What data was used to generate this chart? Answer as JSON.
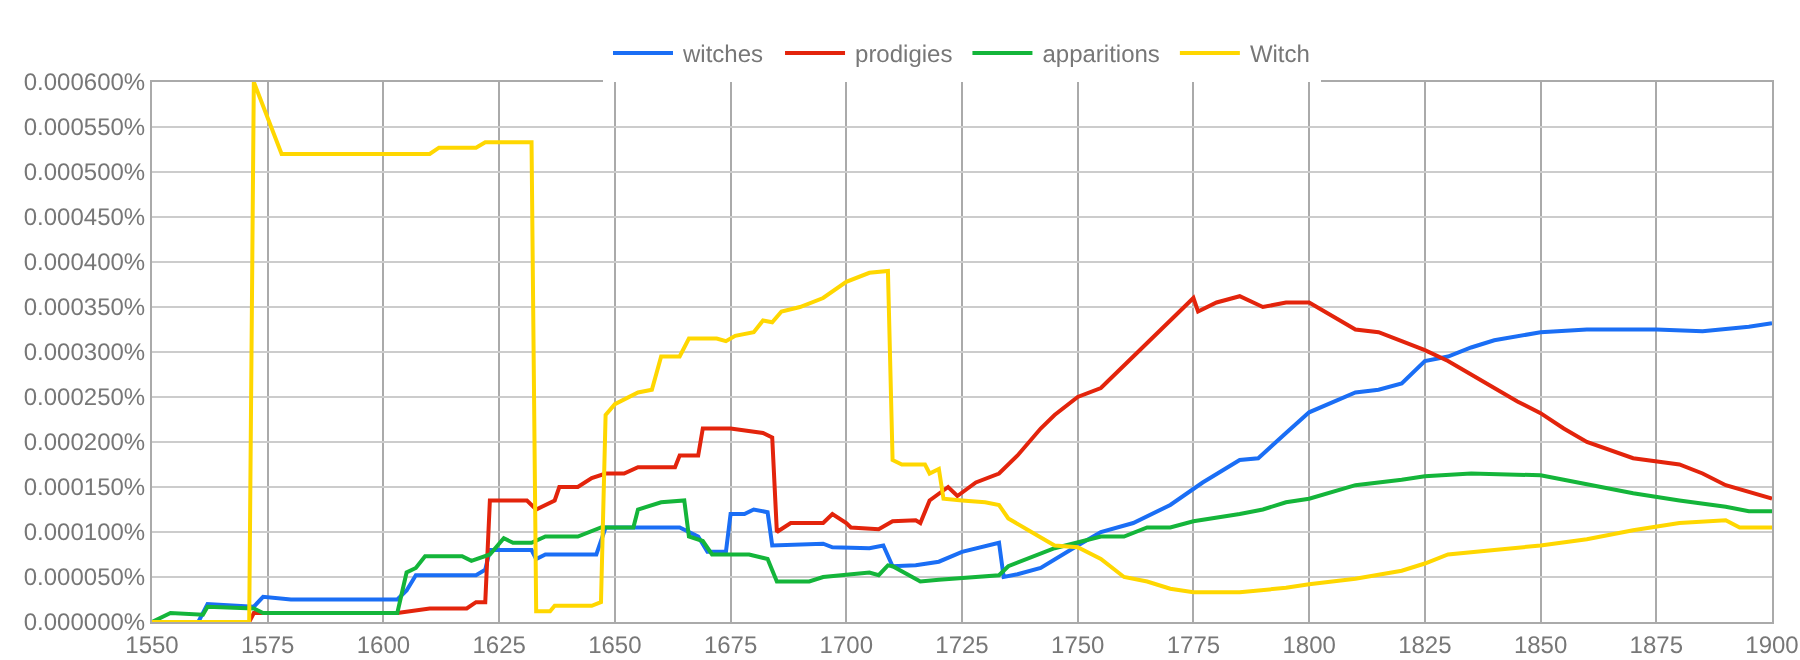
{
  "chart_data": {
    "type": "line",
    "series": [
      {
        "name": "witches",
        "color": "#1a6ef5",
        "x": [
          1550,
          1560,
          1562,
          1572,
          1574,
          1580,
          1603,
          1605,
          1607,
          1620,
          1622,
          1623,
          1632,
          1633,
          1635,
          1646,
          1648,
          1664,
          1668,
          1670,
          1674,
          1675,
          1678,
          1680,
          1683,
          1684,
          1695,
          1697,
          1705,
          1708,
          1710,
          1715,
          1720,
          1725,
          1733,
          1734,
          1737,
          1742,
          1750,
          1755,
          1762,
          1770,
          1777,
          1785,
          1789,
          1795,
          1800,
          1810,
          1815,
          1820,
          1825,
          1830,
          1835,
          1840,
          1850,
          1860,
          1875,
          1885,
          1895,
          1900
        ],
        "values": [
          0,
          0,
          2e-05,
          1.7e-05,
          2.8e-05,
          2.5e-05,
          2.5e-05,
          3.5e-05,
          5.2e-05,
          5.2e-05,
          5.8e-05,
          8e-05,
          8e-05,
          7e-05,
          7.5e-05,
          7.5e-05,
          0.000105,
          0.000105,
          9.5e-05,
          7.8e-05,
          7.8e-05,
          0.00012,
          0.00012,
          0.000125,
          0.000122,
          8.5e-05,
          8.7e-05,
          8.3e-05,
          8.2e-05,
          8.5e-05,
          6.2e-05,
          6.3e-05,
          6.7e-05,
          7.8e-05,
          8.8e-05,
          5e-05,
          5.3e-05,
          6e-05,
          8.5e-05,
          0.0001,
          0.00011,
          0.00013,
          0.000155,
          0.00018,
          0.000182,
          0.00021,
          0.000233,
          0.000255,
          0.000258,
          0.000265,
          0.00029,
          0.000295,
          0.000305,
          0.000313,
          0.000322,
          0.000325,
          0.000325,
          0.000323,
          0.000328,
          0.000332
        ]
      },
      {
        "name": "prodigies",
        "color": "#e3240c",
        "x": [
          1550,
          1571,
          1572,
          1603,
          1610,
          1618,
          1620,
          1622,
          1623,
          1631,
          1633,
          1637,
          1638,
          1642,
          1645,
          1648,
          1652,
          1655,
          1663,
          1664,
          1668,
          1669,
          1675,
          1682,
          1684,
          1685,
          1688,
          1695,
          1697,
          1700,
          1701,
          1707,
          1710,
          1715,
          1716,
          1718,
          1722,
          1724,
          1728,
          1733,
          1737,
          1742,
          1745,
          1750,
          1755,
          1760,
          1765,
          1768,
          1772,
          1775,
          1776,
          1780,
          1785,
          1790,
          1795,
          1800,
          1805,
          1810,
          1815,
          1820,
          1825,
          1830,
          1835,
          1840,
          1845,
          1850,
          1855,
          1860,
          1870,
          1880,
          1885,
          1890,
          1900
        ],
        "values": [
          0,
          0,
          1e-05,
          1e-05,
          1.5e-05,
          1.5e-05,
          2.2e-05,
          2.2e-05,
          0.000135,
          0.000135,
          0.000125,
          0.000135,
          0.00015,
          0.00015,
          0.00016,
          0.000165,
          0.000165,
          0.000172,
          0.000172,
          0.000185,
          0.000185,
          0.000215,
          0.000215,
          0.00021,
          0.000205,
          0.0001,
          0.00011,
          0.00011,
          0.00012,
          0.00011,
          0.000105,
          0.000103,
          0.000112,
          0.000113,
          0.00011,
          0.000135,
          0.00015,
          0.00014,
          0.000155,
          0.000165,
          0.000185,
          0.000215,
          0.00023,
          0.00025,
          0.00026,
          0.000285,
          0.00031,
          0.000325,
          0.000345,
          0.00036,
          0.000345,
          0.000355,
          0.000362,
          0.00035,
          0.000355,
          0.000355,
          0.00034,
          0.000325,
          0.000322,
          0.000312,
          0.000302,
          0.00029,
          0.000275,
          0.00026,
          0.000245,
          0.000232,
          0.000215,
          0.0002,
          0.000182,
          0.000175,
          0.000165,
          0.000152,
          0.000137
        ]
      },
      {
        "name": "apparitions",
        "color": "#14b53a",
        "x": [
          1550,
          1554,
          1561,
          1562,
          1572,
          1574,
          1603,
          1605,
          1607,
          1609,
          1617,
          1619,
          1623,
          1626,
          1628,
          1632,
          1635,
          1642,
          1647,
          1654,
          1655,
          1660,
          1665,
          1666,
          1669,
          1671,
          1679,
          1683,
          1685,
          1692,
          1695,
          1705,
          1707,
          1709,
          1710,
          1716,
          1720,
          1733,
          1735,
          1745,
          1755,
          1760,
          1765,
          1770,
          1775,
          1785,
          1790,
          1795,
          1800,
          1810,
          1820,
          1825,
          1835,
          1850,
          1855,
          1860,
          1870,
          1880,
          1890,
          1895,
          1900
        ],
        "values": [
          0,
          1e-05,
          8e-06,
          1.7e-05,
          1.5e-05,
          1e-05,
          1e-05,
          5.5e-05,
          6e-05,
          7.3e-05,
          7.3e-05,
          6.8e-05,
          7.5e-05,
          9.3e-05,
          8.8e-05,
          8.8e-05,
          9.5e-05,
          9.5e-05,
          0.000105,
          0.000105,
          0.000125,
          0.000133,
          0.000135,
          9.5e-05,
          9e-05,
          7.5e-05,
          7.5e-05,
          7e-05,
          4.5e-05,
          4.5e-05,
          5e-05,
          5.5e-05,
          5.2e-05,
          6.3e-05,
          6.2e-05,
          4.5e-05,
          4.7e-05,
          5.2e-05,
          6.2e-05,
          8.2e-05,
          9.5e-05,
          9.5e-05,
          0.000105,
          0.000105,
          0.000112,
          0.00012,
          0.000125,
          0.000133,
          0.000137,
          0.000152,
          0.000158,
          0.000162,
          0.000165,
          0.000163,
          0.000158,
          0.000153,
          0.000143,
          0.000135,
          0.000128,
          0.000123,
          0.000123
        ]
      },
      {
        "name": "Witch",
        "color": "#ffd700",
        "x": [
          1550,
          1571,
          1572,
          1578,
          1610,
          1612,
          1620,
          1622,
          1632,
          1633,
          1636,
          1637,
          1645,
          1647,
          1648,
          1650,
          1655,
          1658,
          1660,
          1664,
          1666,
          1672,
          1674,
          1676,
          1680,
          1682,
          1684,
          1686,
          1690,
          1695,
          1700,
          1705,
          1709,
          1710,
          1712,
          1717,
          1718,
          1720,
          1721,
          1725,
          1730,
          1733,
          1735,
          1740,
          1745,
          1750,
          1755,
          1760,
          1765,
          1770,
          1775,
          1785,
          1795,
          1800,
          1810,
          1820,
          1825,
          1830,
          1840,
          1850,
          1860,
          1870,
          1880,
          1890,
          1893,
          1900
        ],
        "values": [
          0,
          0,
          0.0006,
          0.00052,
          0.00052,
          0.000527,
          0.000527,
          0.000533,
          0.000533,
          1.2e-05,
          1.2e-05,
          1.8e-05,
          1.8e-05,
          2.2e-05,
          0.00023,
          0.000242,
          0.000255,
          0.000258,
          0.000295,
          0.000295,
          0.000315,
          0.000315,
          0.000312,
          0.000318,
          0.000322,
          0.000335,
          0.000333,
          0.000345,
          0.00035,
          0.00036,
          0.000378,
          0.000388,
          0.00039,
          0.00018,
          0.000175,
          0.000175,
          0.000165,
          0.00017,
          0.000137,
          0.000135,
          0.000133,
          0.00013,
          0.000115,
          0.0001,
          8.5e-05,
          8.3e-05,
          7e-05,
          5e-05,
          4.5e-05,
          3.7e-05,
          3.3e-05,
          3.3e-05,
          3.8e-05,
          4.2e-05,
          4.8e-05,
          5.7e-05,
          6.5e-05,
          7.5e-05,
          8e-05,
          8.5e-05,
          9.2e-05,
          0.000102,
          0.00011,
          0.000113,
          0.000105,
          0.000105
        ]
      }
    ],
    "xlim": [
      1550,
      1900
    ],
    "xticks": [
      1550,
      1575,
      1600,
      1625,
      1650,
      1675,
      1700,
      1725,
      1750,
      1775,
      1800,
      1825,
      1850,
      1875,
      1900
    ],
    "ylim": [
      0,
      0.0006
    ],
    "yticks": [
      {
        "value": 0,
        "label": "0.000000%"
      },
      {
        "value": 5e-05,
        "label": "0.000050%"
      },
      {
        "value": 0.0001,
        "label": "0.000100%"
      },
      {
        "value": 0.00015,
        "label": "0.000150%"
      },
      {
        "value": 0.0002,
        "label": "0.000200%"
      },
      {
        "value": 0.00025,
        "label": "0.000250%"
      },
      {
        "value": 0.0003,
        "label": "0.000300%"
      },
      {
        "value": 0.00035,
        "label": "0.000350%"
      },
      {
        "value": 0.0004,
        "label": "0.000400%"
      },
      {
        "value": 0.00045,
        "label": "0.000450%"
      },
      {
        "value": 0.0005,
        "label": "0.000500%"
      },
      {
        "value": 0.00055,
        "label": "0.000550%"
      },
      {
        "value": 0.0006,
        "label": "0.000600%"
      }
    ],
    "grid": true,
    "legend": "top",
    "marker": "none",
    "line_style": "solid"
  }
}
